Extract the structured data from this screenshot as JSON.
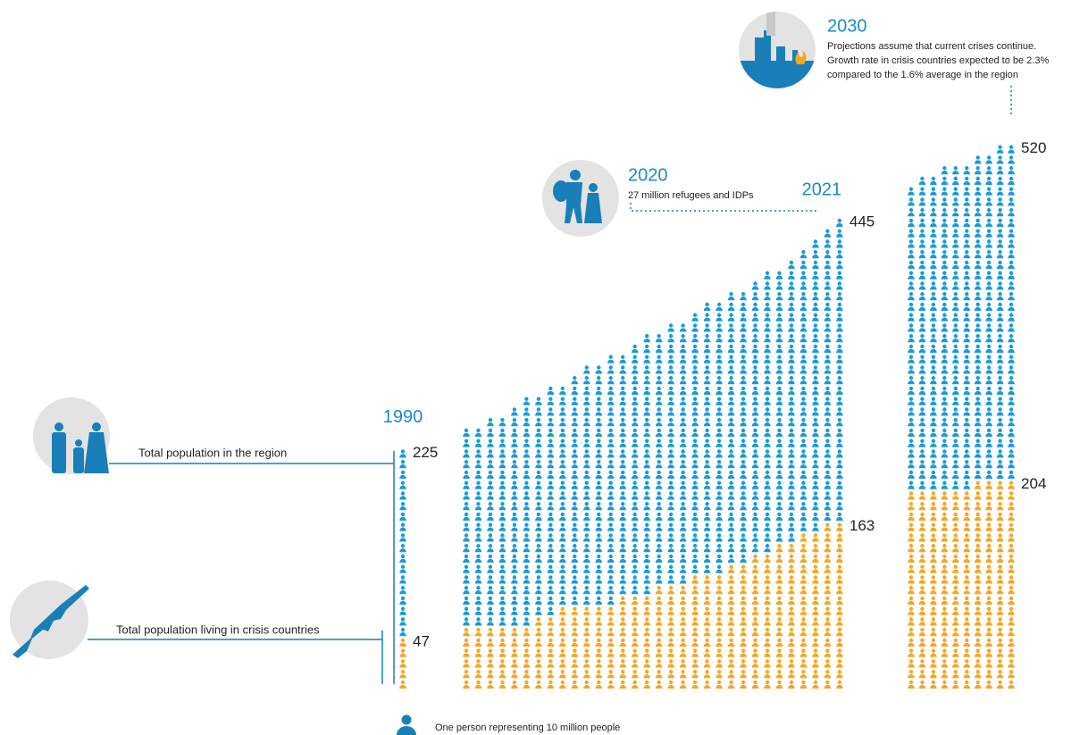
{
  "chart_data": {
    "type": "pictogram",
    "series": [
      {
        "name": "Total population in the region",
        "color": "#1a9ad6"
      },
      {
        "name": "Total population living in crisis countries",
        "color": "#f5a623"
      }
    ],
    "groups": [
      {
        "categories": [
          "1990"
        ],
        "total": [
          225
        ],
        "crisis": [
          47
        ]
      },
      {
        "categories": [
          null,
          null,
          null,
          null,
          null,
          null,
          null,
          null,
          null,
          null,
          null,
          null,
          null,
          null,
          null,
          null,
          null,
          null,
          null,
          null,
          null,
          null,
          null,
          null,
          null,
          null,
          null,
          null,
          null,
          null,
          null,
          "2021"
        ],
        "total": [
          245,
          245,
          258,
          262,
          268,
          275,
          280,
          286,
          292,
          298,
          305,
          312,
          318,
          324,
          330,
          336,
          342,
          348,
          354,
          360,
          366,
          372,
          378,
          384,
          390,
          396,
          402,
          410,
          418,
          426,
          435,
          445
        ],
        "crisis": [
          55,
          55,
          55,
          55,
          58,
          62,
          70,
          72,
          75,
          78,
          80,
          82,
          84,
          86,
          88,
          92,
          95,
          100,
          103,
          106,
          110,
          114,
          118,
          122,
          126,
          130,
          135,
          140,
          145,
          150,
          156,
          163
        ]
      },
      {
        "total": [
          483,
          487,
          491,
          495,
          500,
          503,
          507,
          511,
          515,
          520
        ],
        "crisis": [
          190,
          190,
          190,
          190,
          192,
          194,
          196,
          198,
          201,
          204
        ]
      }
    ],
    "annotations": [
      {
        "label": "2020",
        "text": [
          "27 million refugees and IDPs"
        ]
      },
      {
        "label": "2030",
        "text": [
          "Projections assume that current crises continue.",
          "Growth rate in crisis countries expected to be 2.3%",
          "compared to the 1.6% average in the region"
        ]
      }
    ],
    "legend": "One person representing 10 million people"
  }
}
